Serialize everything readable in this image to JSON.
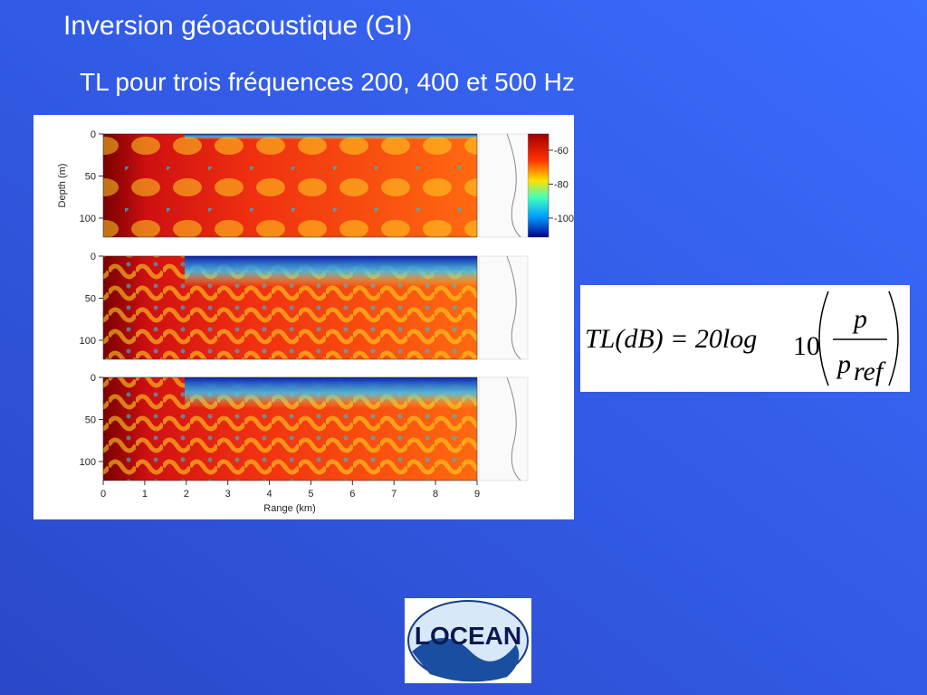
{
  "header": {
    "title": "Inversion géoacoustique (GI)",
    "subtitle": "TL pour trois fréquences 200, 400 et 500 Hz"
  },
  "figure": {
    "ylabel": "Depth (m)",
    "xlabel": "Range (km)",
    "panels": [
      {
        "depth_ticks": [
          "0",
          "50",
          "100"
        ]
      },
      {
        "depth_ticks": [
          "0",
          "50",
          "100"
        ]
      },
      {
        "depth_ticks": [
          "0",
          "50",
          "100"
        ]
      }
    ],
    "range_ticks": [
      "0",
      "1",
      "2",
      "3",
      "4",
      "5",
      "6",
      "7",
      "8",
      "9"
    ],
    "colorbar_ticks": [
      "-60",
      "-80",
      "-100"
    ]
  },
  "formula": {
    "lhs": "TL(dB) = 20log",
    "base": "10",
    "numerator": "p",
    "denominator": "p",
    "denominator_sub": "ref"
  },
  "logo": {
    "text": "LOCEAN"
  }
}
